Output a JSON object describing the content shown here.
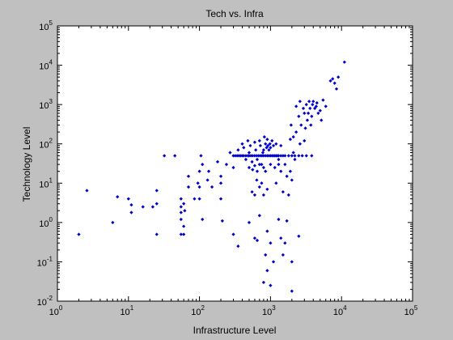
{
  "chart_data": {
    "type": "scatter",
    "title": "Tech vs. Infra",
    "xlabel": "Infrastructure Level",
    "ylabel": "Technology Level",
    "xscale": "log",
    "yscale": "log",
    "xlim": [
      1,
      100000
    ],
    "ylim": [
      0.01,
      100000
    ],
    "grid": false,
    "marker": "point",
    "colors": {
      "figure_background": "#c0c0c0",
      "axes_background": "#ffffff",
      "marker": "#0000cc",
      "axis": "#000000"
    },
    "x_ticks": [
      {
        "value": 1,
        "base": "10",
        "exp": "0"
      },
      {
        "value": 10,
        "base": "10",
        "exp": "1"
      },
      {
        "value": 100,
        "base": "10",
        "exp": "2"
      },
      {
        "value": 1000,
        "base": "10",
        "exp": "3"
      },
      {
        "value": 10000,
        "base": "10",
        "exp": "4"
      },
      {
        "value": 100000,
        "base": "10",
        "exp": "5"
      }
    ],
    "y_ticks": [
      {
        "value": 0.01,
        "base": "10",
        "exp": "-2"
      },
      {
        "value": 0.1,
        "base": "10",
        "exp": "-1"
      },
      {
        "value": 1,
        "base": "10",
        "exp": "0"
      },
      {
        "value": 10,
        "base": "10",
        "exp": "1"
      },
      {
        "value": 100,
        "base": "10",
        "exp": "2"
      },
      {
        "value": 1000,
        "base": "10",
        "exp": "3"
      },
      {
        "value": 10000,
        "base": "10",
        "exp": "4"
      },
      {
        "value": 100000,
        "base": "10",
        "exp": "5"
      }
    ],
    "points": [
      [
        2,
        0.5
      ],
      [
        2.6,
        6.5
      ],
      [
        6,
        1.0
      ],
      [
        7,
        4.5
      ],
      [
        10,
        4
      ],
      [
        11,
        2.8
      ],
      [
        11,
        1.8
      ],
      [
        16,
        2.5
      ],
      [
        22,
        2.5
      ],
      [
        25,
        6.5
      ],
      [
        25,
        3
      ],
      [
        25,
        0.5
      ],
      [
        32,
        50
      ],
      [
        45,
        50
      ],
      [
        55,
        4
      ],
      [
        55,
        2.5
      ],
      [
        55,
        1.8
      ],
      [
        55,
        1.2
      ],
      [
        55,
        0.5
      ],
      [
        60,
        3
      ],
      [
        60,
        0.8
      ],
      [
        62,
        2
      ],
      [
        60,
        0.5
      ],
      [
        70,
        15
      ],
      [
        70,
        8
      ],
      [
        85,
        4
      ],
      [
        95,
        10
      ],
      [
        100,
        8
      ],
      [
        100,
        4
      ],
      [
        100,
        20
      ],
      [
        105,
        50
      ],
      [
        110,
        30
      ],
      [
        110,
        1.2
      ],
      [
        130,
        12
      ],
      [
        135,
        20
      ],
      [
        150,
        8
      ],
      [
        180,
        35
      ],
      [
        200,
        15
      ],
      [
        200,
        10
      ],
      [
        200,
        4
      ],
      [
        210,
        1.1
      ],
      [
        240,
        30
      ],
      [
        270,
        60
      ],
      [
        300,
        25
      ],
      [
        300,
        50
      ],
      [
        320,
        50
      ],
      [
        340,
        50
      ],
      [
        360,
        50
      ],
      [
        380,
        50
      ],
      [
        400,
        50
      ],
      [
        420,
        50
      ],
      [
        450,
        50
      ],
      [
        480,
        50
      ],
      [
        500,
        50
      ],
      [
        530,
        50
      ],
      [
        560,
        50
      ],
      [
        600,
        50
      ],
      [
        640,
        50
      ],
      [
        680,
        50
      ],
      [
        720,
        50
      ],
      [
        760,
        50
      ],
      [
        800,
        50
      ],
      [
        850,
        50
      ],
      [
        900,
        50
      ],
      [
        950,
        50
      ],
      [
        1000,
        50
      ],
      [
        1050,
        50
      ],
      [
        1100,
        50
      ],
      [
        1150,
        50
      ],
      [
        1200,
        50
      ],
      [
        1250,
        50
      ],
      [
        1300,
        50
      ],
      [
        1400,
        50
      ],
      [
        1500,
        50
      ],
      [
        1600,
        50
      ],
      [
        1800,
        50
      ],
      [
        2000,
        50
      ],
      [
        2200,
        50
      ],
      [
        2500,
        50
      ],
      [
        2800,
        50
      ],
      [
        3200,
        50
      ],
      [
        3800,
        50
      ],
      [
        350,
        70
      ],
      [
        400,
        100
      ],
      [
        420,
        80
      ],
      [
        450,
        40
      ],
      [
        480,
        120
      ],
      [
        500,
        60
      ],
      [
        520,
        90
      ],
      [
        550,
        35
      ],
      [
        600,
        110
      ],
      [
        620,
        70
      ],
      [
        650,
        40
      ],
      [
        700,
        120
      ],
      [
        720,
        90
      ],
      [
        750,
        30
      ],
      [
        780,
        60
      ],
      [
        800,
        70
      ],
      [
        820,
        150
      ],
      [
        850,
        100
      ],
      [
        880,
        80
      ],
      [
        900,
        130
      ],
      [
        920,
        90
      ],
      [
        950,
        70
      ],
      [
        980,
        100
      ],
      [
        1000,
        80
      ],
      [
        1050,
        120
      ],
      [
        1100,
        90
      ],
      [
        1200,
        100
      ],
      [
        1300,
        40
      ],
      [
        1400,
        90
      ],
      [
        1600,
        30
      ],
      [
        1900,
        130
      ],
      [
        2100,
        60
      ],
      [
        2300,
        200
      ],
      [
        2600,
        100
      ],
      [
        3000,
        120
      ],
      [
        500,
        25
      ],
      [
        560,
        22
      ],
      [
        600,
        28
      ],
      [
        640,
        12
      ],
      [
        650,
        20
      ],
      [
        700,
        30
      ],
      [
        750,
        10
      ],
      [
        800,
        25
      ],
      [
        850,
        20
      ],
      [
        1000,
        30
      ],
      [
        1150,
        25
      ],
      [
        1300,
        30
      ],
      [
        1400,
        20
      ],
      [
        1700,
        15
      ],
      [
        1900,
        20
      ],
      [
        550,
        6
      ],
      [
        600,
        5
      ],
      [
        700,
        8
      ],
      [
        800,
        5
      ],
      [
        900,
        7
      ],
      [
        1200,
        10
      ],
      [
        1500,
        6
      ],
      [
        1800,
        5
      ],
      [
        2000,
        12
      ],
      [
        2200,
        40
      ],
      [
        300,
        0.5
      ],
      [
        350,
        0.25
      ],
      [
        500,
        1.0
      ],
      [
        600,
        0.4
      ],
      [
        650,
        0.35
      ],
      [
        700,
        1.5
      ],
      [
        800,
        0.03
      ],
      [
        850,
        0.15
      ],
      [
        900,
        0.06
      ],
      [
        900,
        0.6
      ],
      [
        1000,
        0.3
      ],
      [
        1000,
        0.025
      ],
      [
        1100,
        0.1
      ],
      [
        1300,
        1.2
      ],
      [
        1400,
        0.4
      ],
      [
        1500,
        0.15
      ],
      [
        1600,
        0.3
      ],
      [
        1700,
        1.1
      ],
      [
        2000,
        0.018
      ],
      [
        2000,
        0.1
      ],
      [
        2500,
        0.45
      ],
      [
        1950,
        300
      ],
      [
        2100,
        150
      ],
      [
        2300,
        900
      ],
      [
        2500,
        500
      ],
      [
        2600,
        1200
      ],
      [
        2700,
        300
      ],
      [
        2900,
        800
      ],
      [
        3000,
        600
      ],
      [
        3100,
        250
      ],
      [
        3200,
        1000
      ],
      [
        3300,
        400
      ],
      [
        3400,
        600
      ],
      [
        3500,
        1200
      ],
      [
        3600,
        800
      ],
      [
        3700,
        300
      ],
      [
        3800,
        500
      ],
      [
        3900,
        1000
      ],
      [
        4000,
        1200
      ],
      [
        4200,
        800
      ],
      [
        4400,
        900
      ],
      [
        4500,
        1100
      ],
      [
        4700,
        600
      ],
      [
        5000,
        700
      ],
      [
        5200,
        400
      ],
      [
        5500,
        1300
      ],
      [
        6000,
        900
      ],
      [
        7000,
        4000
      ],
      [
        7500,
        4500
      ],
      [
        8000,
        3500
      ],
      [
        8500,
        2500
      ],
      [
        9000,
        5000
      ],
      [
        11000,
        12000
      ]
    ]
  }
}
